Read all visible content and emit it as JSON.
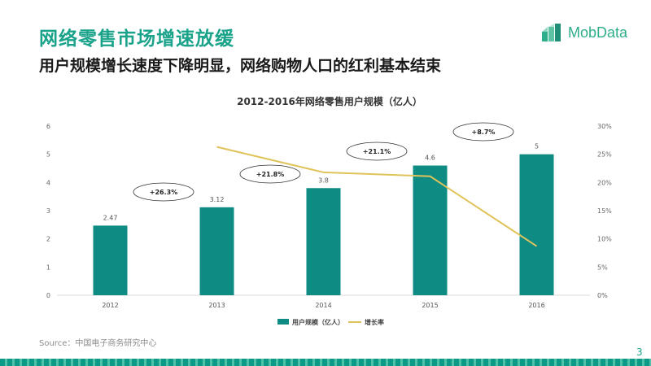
{
  "header": {
    "title": "网络零售市场增速放缓",
    "subtitle": "用户规模增长速度下降明显，网络购物人口的红利基本结束"
  },
  "logo": {
    "text": "MobData",
    "color": "#2eae8b"
  },
  "chart_data": {
    "type": "bar",
    "title": "2012-2016年网络零售用户规模（亿人）",
    "categories": [
      "2012",
      "2013",
      "2014",
      "2015",
      "2016"
    ],
    "series": [
      {
        "name": "用户规模（亿人）",
        "type": "bar",
        "axis": "left",
        "color": "#0e8c84",
        "values": [
          2.47,
          3.12,
          3.8,
          4.6,
          5
        ],
        "labels": [
          "2.47",
          "3.12",
          "3.8",
          "4.6",
          "5"
        ]
      },
      {
        "name": "增长率",
        "type": "line",
        "axis": "right",
        "color": "#e0c35a",
        "x": [
          "2013",
          "2014",
          "2015",
          "2016"
        ],
        "values": [
          26.3,
          21.8,
          21.1,
          8.7
        ]
      }
    ],
    "left_axis": {
      "min": 0,
      "max": 6,
      "ticks": [
        "0",
        "1",
        "2",
        "3",
        "4",
        "5",
        "6"
      ]
    },
    "right_axis": {
      "min": 0,
      "max": 30,
      "ticks": [
        "0%",
        "5%",
        "10%",
        "15%",
        "20%",
        "25%",
        "30%"
      ]
    },
    "annotations": [
      {
        "text": "+26.3%",
        "between": [
          "2012",
          "2013"
        ]
      },
      {
        "text": "+21.8%",
        "between": [
          "2013",
          "2014"
        ]
      },
      {
        "text": "+21.1%",
        "between": [
          "2014",
          "2015"
        ]
      },
      {
        "text": "+8.7%",
        "between": [
          "2015",
          "2016"
        ]
      }
    ],
    "legend_position": "bottom",
    "grid": false
  },
  "footer": {
    "source": "Source：中国电子商务研究中心",
    "page_number": "3"
  }
}
